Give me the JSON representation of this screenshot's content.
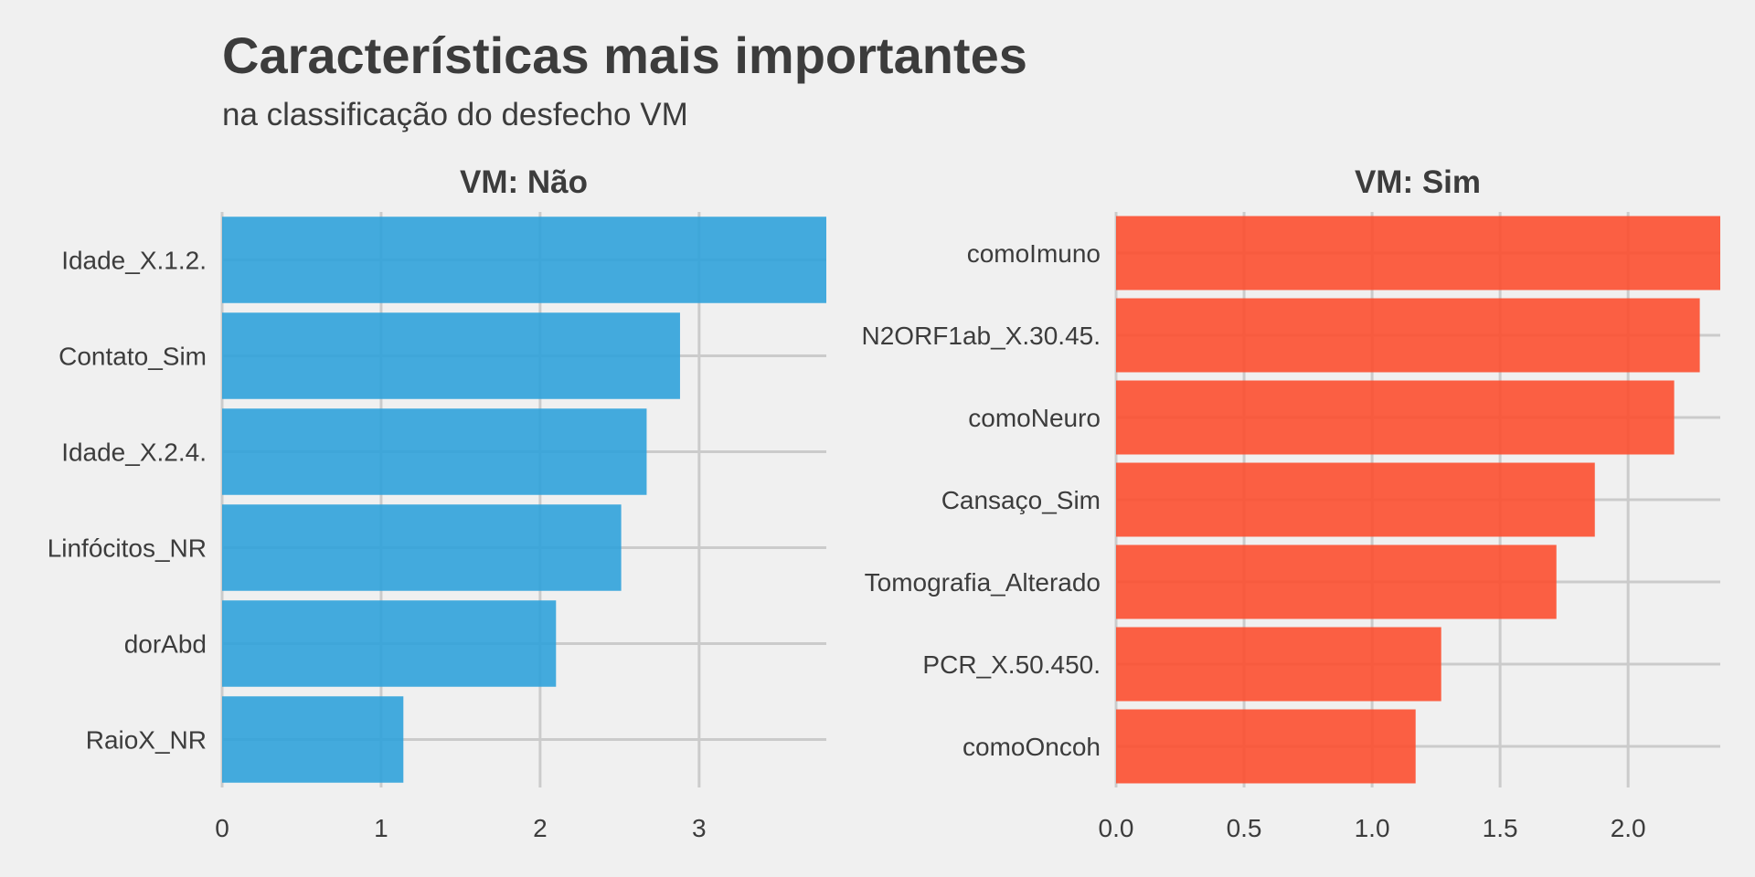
{
  "title": "Características mais importantes",
  "subtitle": "na classificação do desfecho VM",
  "chart_data": [
    {
      "type": "bar",
      "orientation": "horizontal",
      "title": "VM: Não",
      "color": "#30a2da",
      "categories": [
        "Idade_X.1.2.",
        "Contato_Sim",
        "Idade_X.2.4.",
        "Linfócitos_NR",
        "dorAbd",
        "RaioX_NR"
      ],
      "values": [
        3.8,
        2.88,
        2.67,
        2.51,
        2.1,
        1.14
      ],
      "xlim": [
        0,
        3.8
      ],
      "xticks": [
        "0",
        "1",
        "2",
        "3"
      ],
      "xtick_values": [
        0,
        1,
        2,
        3
      ],
      "grid": true
    },
    {
      "type": "bar",
      "orientation": "horizontal",
      "title": "VM: Sim",
      "color": "#fc4f30",
      "categories": [
        "comoImuno",
        "N2ORF1ab_X.30.45.",
        "comoNeuro",
        "Cansaço_Sim",
        "Tomografia_Alterado",
        "PCR_X.50.450.",
        "comoOncoh"
      ],
      "values": [
        2.36,
        2.28,
        2.18,
        1.87,
        1.72,
        1.27,
        1.17
      ],
      "xlim": [
        0,
        2.36
      ],
      "xticks": [
        "0.0",
        "0.5",
        "1.0",
        "1.5",
        "2.0"
      ],
      "xtick_values": [
        0,
        0.5,
        1.0,
        1.5,
        2.0
      ],
      "grid": true
    }
  ]
}
